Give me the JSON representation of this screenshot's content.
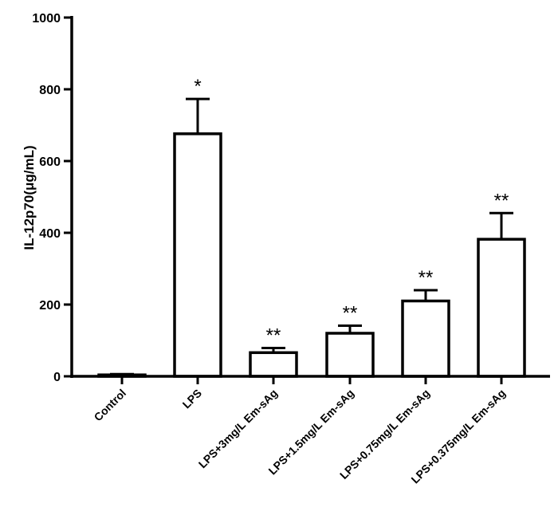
{
  "chart_data": {
    "type": "bar",
    "title": "",
    "xlabel": "",
    "ylabel": "IL-12p70(μg/mL)",
    "ylim": [
      0,
      1000
    ],
    "yticks": [
      0,
      200,
      400,
      600,
      800,
      1000
    ],
    "grid": false,
    "categories": [
      "Control",
      "LPS",
      "LPS+3mg/L Em-sAg",
      "LPS+1.5mg/L Em-sAg",
      "LPS+0.75mg/L Em-sAg",
      "LPS+0.375mg/L Em-sAg"
    ],
    "values": [
      4,
      676,
      66,
      120,
      210,
      382
    ],
    "error_upper": [
      6,
      773,
      79,
      141,
      240,
      455
    ],
    "annotations": [
      "",
      "*",
      "**",
      "**",
      "**",
      "**"
    ],
    "colors": {
      "bar_fill": "#ffffff",
      "stroke": "#000000"
    }
  }
}
